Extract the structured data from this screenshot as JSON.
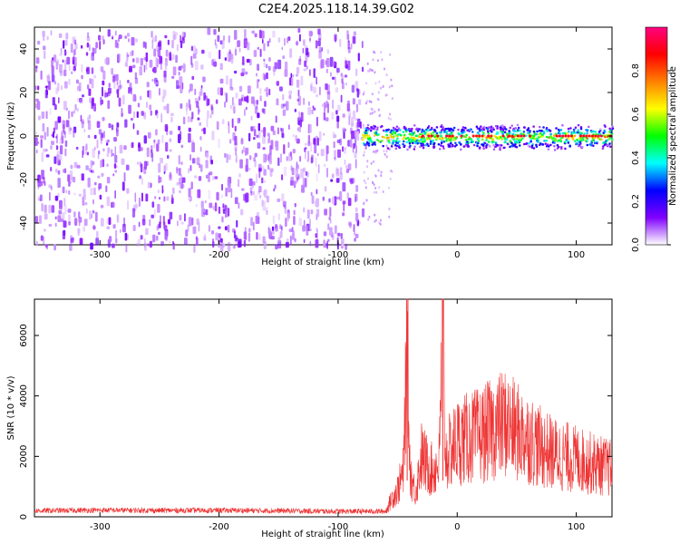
{
  "figure": {
    "title": "C2E4.2025.118.14.39.G02"
  },
  "chart_data": [
    {
      "type": "heatmap",
      "title": "C2E4.2025.118.14.39.G02",
      "xlabel": "Height of straight line (km)",
      "ylabel": "Frequency (Hz)",
      "xlim": [
        -355,
        130
      ],
      "ylim": [
        -50,
        50
      ],
      "xticks": [
        -300,
        -200,
        -100,
        0,
        100
      ],
      "yticks": [
        -40,
        -20,
        0,
        20,
        40
      ],
      "colorbar": {
        "label": "Normalized spectral amplitude",
        "range": [
          0,
          1
        ],
        "ticks": [
          0.0,
          0.2,
          0.4,
          0.6,
          0.8
        ],
        "colormap": [
          "#ffffff",
          "#8000ff",
          "#0000ff",
          "#00ffff",
          "#00ff00",
          "#ffff00",
          "#ff8000",
          "#ff0000",
          "#ff0080"
        ]
      },
      "regions": [
        {
          "x_from": -355,
          "x_to": -80,
          "description_values": {
            "level": 0.05
          }
        },
        {
          "x_from": -80,
          "x_to": 130,
          "center_frequency": 0,
          "peak_level": 0.95
        }
      ],
      "grid": false
    },
    {
      "type": "line",
      "xlabel": "Height of straight line (km)",
      "ylabel": "SNR (10 * v/v)",
      "xlim": [
        -355,
        130
      ],
      "ylim": [
        0,
        7200
      ],
      "xticks": [
        -300,
        -200,
        -100,
        0,
        100
      ],
      "yticks": [
        0,
        2000,
        4000,
        6000
      ],
      "series": [
        {
          "color": "#ee3333",
          "x": [
            -355,
            -300,
            -250,
            -200,
            -150,
            -100,
            -60,
            -55,
            -50,
            -45,
            -42,
            -40,
            -38,
            -35,
            -30,
            -25,
            -20,
            -15,
            -12,
            -10,
            -5,
            0,
            10,
            20,
            30,
            40,
            50,
            60,
            70,
            80,
            90,
            100,
            110,
            120,
            130
          ],
          "y": [
            200,
            220,
            210,
            215,
            200,
            180,
            180,
            600,
            900,
            1500,
            6800,
            1800,
            1200,
            800,
            2000,
            1700,
            1500,
            1800,
            7200,
            2000,
            2200,
            2500,
            2600,
            2700,
            2900,
            3100,
            2800,
            2600,
            2300,
            2100,
            2000,
            1900,
            1800,
            1700,
            1600
          ]
        }
      ],
      "grid": false
    }
  ]
}
